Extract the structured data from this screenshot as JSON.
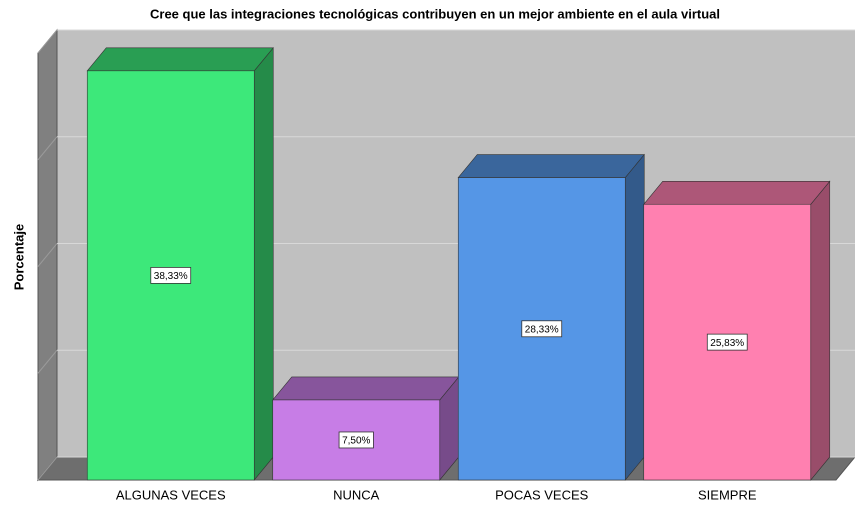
{
  "chart_data": {
    "type": "bar3d",
    "title": "Cree que las integraciones tecnológicas contribuyen en un mejor ambiente en el aula virtual",
    "y_label": "Porcentaje",
    "categories": [
      "ALGUNAS VECES",
      "NUNCA",
      "POCAS VECES",
      "SIEMPRE"
    ],
    "values": [
      38.33,
      7.5,
      28.33,
      25.83
    ],
    "value_labels": [
      "38,33%",
      "7,50%",
      "28,33%",
      "25,83%"
    ],
    "colors": [
      "#3de87a",
      "#c77de6",
      "#5596e6",
      "#ff80b0"
    ],
    "ylim": [
      0,
      40
    ],
    "yticks": [
      0,
      10,
      20,
      30,
      40
    ],
    "grid": true
  }
}
